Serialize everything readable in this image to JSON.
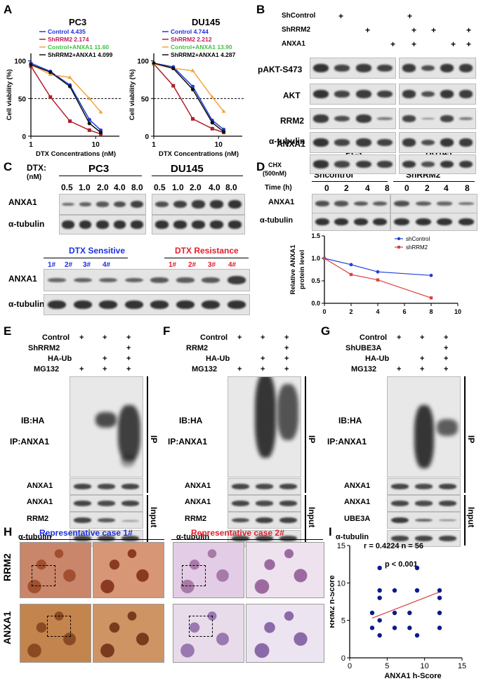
{
  "panels": {
    "A": "A",
    "B": "B",
    "C": "C",
    "D": "D",
    "E": "E",
    "F": "F",
    "G": "G",
    "H": "H",
    "I": "I"
  },
  "panelA": {
    "ylabel": "Cell viability (%)",
    "xlabel": "DTX Concentrations (nM)",
    "yticks": [
      "0",
      "50",
      "100"
    ],
    "xticks": [
      "1",
      "10"
    ]
  },
  "colors": {
    "control": "#1f3fd9",
    "shrrm2": "#b01e2a",
    "control_anxa1": "#f2a53a",
    "shrrm2_anxa1": "#111111",
    "blue_text": "#1b2fe0",
    "red_text": "#e0202a",
    "green": "#3cc43c",
    "pink_text": "#c01a5a",
    "scatter_pt": "#0d1a8a",
    "fit": "#d94040"
  },
  "chart_data": [
    {
      "type": "line",
      "title": "PC3",
      "xscale": "log",
      "xlim": [
        1,
        20
      ],
      "ylim": [
        0,
        110
      ],
      "xlabel": "DTX Concentrations (nM)",
      "ylabel": "Cell viability (%)",
      "x": [
        1,
        2,
        4,
        8,
        12
      ],
      "series": [
        {
          "name": "Control 4.435",
          "values": [
            97,
            86,
            68,
            22,
            8
          ]
        },
        {
          "name": "ShRRM2 2.174",
          "values": [
            93,
            52,
            20,
            8,
            3
          ]
        },
        {
          "name": "Control+ANXA1 11.60",
          "values": [
            95,
            82,
            78,
            50,
            32
          ]
        },
        {
          "name": "ShRRM2+ANXA1 4.099",
          "values": [
            95,
            85,
            66,
            17,
            5
          ]
        }
      ],
      "hline": 50
    },
    {
      "type": "line",
      "title": "DU145",
      "xscale": "log",
      "xlim": [
        1,
        20
      ],
      "ylim": [
        0,
        110
      ],
      "xlabel": "DTX Concentrations (nM)",
      "ylabel": "Cell viability (%)",
      "x": [
        1,
        2,
        4,
        8,
        12
      ],
      "series": [
        {
          "name": "Control 4.744",
          "values": [
            97,
            92,
            66,
            21,
            9
          ]
        },
        {
          "name": "ShRRM2 2.212",
          "values": [
            96,
            67,
            23,
            10,
            5
          ]
        },
        {
          "name": "Control+ANXA1 13.90",
          "values": [
            96,
            90,
            87,
            52,
            33
          ]
        },
        {
          "name": "ShRRM2+ANXA1 4.287",
          "values": [
            97,
            90,
            62,
            18,
            6
          ]
        }
      ],
      "hline": 50
    },
    {
      "type": "line",
      "title": "",
      "xlim": [
        0,
        10
      ],
      "ylim": [
        0,
        1.5
      ],
      "xlabel": "",
      "ylabel": "Relative ANXA1 protein level",
      "xticks": [
        "0",
        "2",
        "4",
        "6",
        "8",
        "10"
      ],
      "yticks": [
        "0.0",
        "0.5",
        "1.0",
        "1.5"
      ],
      "legend": "top-right",
      "x": [
        0,
        2,
        4,
        8
      ],
      "series": [
        {
          "name": "shControl",
          "values": [
            1.0,
            0.86,
            0.7,
            0.62
          ]
        },
        {
          "name": "shRRM2",
          "values": [
            1.0,
            0.64,
            0.52,
            0.12
          ]
        }
      ]
    },
    {
      "type": "scatter",
      "title": "",
      "xlim": [
        0,
        15
      ],
      "ylim": [
        0,
        15
      ],
      "xlabel": "ANXA1 h-Score",
      "ylabel": "RRM2 h-Score",
      "xticks": [
        "0",
        "5",
        "10",
        "15"
      ],
      "yticks": [
        "0",
        "5",
        "10",
        "15"
      ],
      "annotations": [
        "r = 0.4224 n = 56",
        "p < 0.001"
      ],
      "points": [
        [
          3,
          4
        ],
        [
          3,
          6
        ],
        [
          4,
          3
        ],
        [
          4,
          5
        ],
        [
          4,
          12
        ],
        [
          4,
          8
        ],
        [
          4,
          9
        ],
        [
          6,
          4
        ],
        [
          6,
          6
        ],
        [
          6,
          9
        ],
        [
          8,
          4
        ],
        [
          8,
          6
        ],
        [
          9,
          3
        ],
        [
          9,
          9
        ],
        [
          9,
          12
        ],
        [
          12,
          4
        ],
        [
          12,
          8
        ],
        [
          12,
          9
        ],
        [
          12,
          6
        ]
      ],
      "fit": [
        [
          3,
          5.3
        ],
        [
          12,
          8.8
        ]
      ]
    }
  ],
  "panelB": {
    "rows": [
      "ShControl",
      "ShRRM2",
      "ANXA1"
    ],
    "plus": "+",
    "blots": [
      "pAKT-S473",
      "AKT",
      "RRM2",
      "ANXA1",
      "α-tubulin"
    ],
    "cells": [
      "PC3",
      "DU145"
    ]
  },
  "panelC": {
    "dtx_label": "DTX:",
    "dtx_unit": "(nM)",
    "cells": [
      "PC3",
      "DU145"
    ],
    "doses": [
      "0.5",
      "1.0",
      "2.0",
      "4.0",
      "8.0",
      "0.5",
      "1.0",
      "2.0",
      "4.0",
      "8.0"
    ],
    "blots": [
      "ANXA1",
      "α-tubulin"
    ],
    "sensitive_label": "DTX Sensitive",
    "resistance_label": "DTX Resistance",
    "sensitive": [
      "1#",
      "2#",
      "3#",
      "4#"
    ],
    "resistant": [
      "1#",
      "2#",
      "3#",
      "4#"
    ]
  },
  "panelD": {
    "chx": "CHX",
    "chx_conc": "(500nM)",
    "time_label": "Time (h)",
    "groups": [
      "Shcontrol",
      "ShRRM2"
    ],
    "times": [
      "0",
      "2",
      "4",
      "8",
      "0",
      "2",
      "4",
      "8"
    ],
    "blots": [
      "ANXA1",
      "α-tubulin"
    ]
  },
  "panelE": {
    "rows": [
      "Control",
      "ShRRM2",
      "HA-Ub",
      "MG132"
    ],
    "ib": "IB:HA",
    "ip": "IP:ANXA1",
    "ip_tag": "IP",
    "input_tag": "Input",
    "blots": [
      "ANXA1",
      "ANXA1",
      "RRM2",
      "α-tubulin"
    ]
  },
  "panelF": {
    "rows": [
      "Control",
      "RRM2",
      "HA-Ub",
      "MG132"
    ],
    "ib": "IB:HA",
    "ip": "IP:ANXA1",
    "ip_tag": "IP",
    "input_tag": "Input",
    "blots": [
      "ANXA1",
      "ANXA1",
      "RRM2",
      "α-tubulin"
    ]
  },
  "panelG": {
    "rows": [
      "Control",
      "ShUBE3A",
      "HA-Ub",
      "MG132"
    ],
    "ib": "IB:HA",
    "ip": "IP:ANXA1",
    "ip_tag": "IP",
    "input_tag": "Input",
    "blots": [
      "ANXA1",
      "ANXA1",
      "UBE3A",
      "α-tubulin"
    ]
  },
  "panelH": {
    "case1": "Representative case 1#",
    "case2": "Representative case  2#",
    "rows": [
      "RRM2",
      "ANXA1"
    ]
  }
}
